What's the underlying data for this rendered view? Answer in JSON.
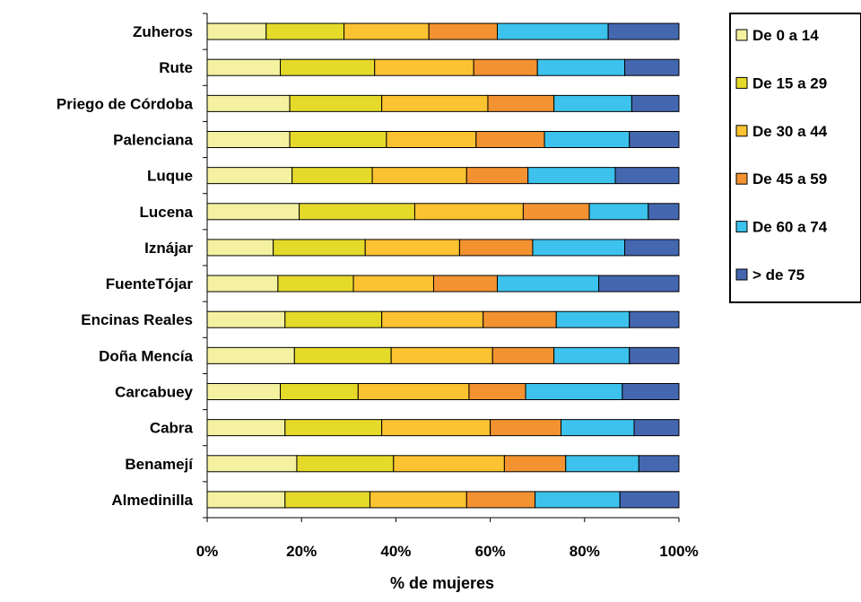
{
  "chart_data": {
    "type": "bar",
    "orientation": "horizontal",
    "stacked": "percent",
    "title": "",
    "xlabel": "% de mujeres",
    "ylabel": "",
    "xlim": [
      0,
      100
    ],
    "grid": false,
    "legend_position": "right",
    "categories": [
      "Zuheros",
      "Rute",
      "Priego de Córdoba",
      "Palenciana",
      "Luque",
      "Lucena",
      "Iznájar",
      "FuenteTójar",
      "Encinas Reales",
      "Doña Mencía",
      "Carcabuey",
      "Cabra",
      "Benamejí",
      "Almedinilla"
    ],
    "tick_labels": [
      "0%",
      "20%",
      "40%",
      "60%",
      "80%",
      "100%"
    ],
    "series": [
      {
        "name": "De 0 a 14",
        "color": "#F4F1A0",
        "values": [
          12.5,
          15.5,
          17.5,
          17.5,
          18,
          19.5,
          14,
          15,
          16.5,
          18.5,
          15.5,
          16.5,
          19,
          16.5
        ]
      },
      {
        "name": "De 15 a 29",
        "color": "#E5DA2A",
        "values": [
          16.5,
          20,
          19.5,
          20.5,
          17,
          24.5,
          19.5,
          16,
          20.5,
          20.5,
          16.5,
          20.5,
          20.5,
          18
        ]
      },
      {
        "name": "De 30 a 44",
        "color": "#FBC231",
        "values": [
          18,
          21,
          22.5,
          19,
          20,
          23,
          20,
          17,
          21.5,
          21.5,
          23.5,
          23,
          23.5,
          20.5
        ]
      },
      {
        "name": "De 45 a 59",
        "color": "#F39231",
        "values": [
          14.5,
          13.5,
          14,
          14.5,
          13,
          14,
          15.5,
          13.5,
          15.5,
          13,
          12,
          15,
          13,
          14.5
        ]
      },
      {
        "name": "De 60 a 74",
        "color": "#3CC2EC",
        "values": [
          23.5,
          18.5,
          16.5,
          18,
          18.5,
          12.5,
          19.5,
          21.5,
          15.5,
          16,
          20.5,
          15.5,
          15.5,
          18
        ]
      },
      {
        "name": "> de 75",
        "color": "#4467B0",
        "values": [
          15,
          11.5,
          10,
          10.5,
          13.5,
          6.5,
          11.5,
          17,
          10.5,
          10.5,
          12,
          9.5,
          8.5,
          12.5
        ]
      }
    ]
  }
}
